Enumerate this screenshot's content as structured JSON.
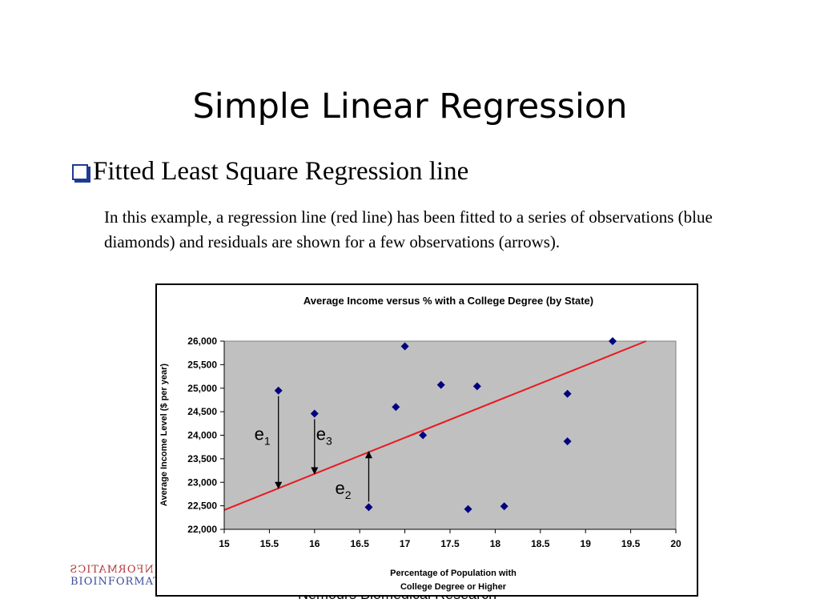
{
  "slide": {
    "title": "Simple Linear Regression",
    "bullet": "Fitted Least Square Regression line",
    "body": "In this example, a regression line (red line) has been fitted to a series of observations (blue diamonds) and residuals are shown for a few observations (arrows).",
    "footer": "Nemours Biomedical Research",
    "logo_line1": "INFORMATICS",
    "logo_line2": "BIOINFORMATICS"
  },
  "colors": {
    "plot_background": "#c0c0c0",
    "point": "#000080",
    "regression_line": "#e8181e",
    "bullet": "#1f3a93"
  },
  "chart_data": {
    "type": "scatter",
    "title": "Average Income versus % with a College Degree (by State)",
    "xlabel_lines": [
      "Percentage of Population with",
      "College Degree or Higher"
    ],
    "ylabel": "Average Income Level ($ per year)",
    "xlim": [
      15,
      20
    ],
    "ylim": [
      22000,
      26000
    ],
    "x_ticks": [
      15,
      15.5,
      16,
      16.5,
      17,
      17.5,
      18,
      18.5,
      19,
      19.5,
      20
    ],
    "x_tick_labels": [
      "15",
      "15.5",
      "16",
      "16.5",
      "17",
      "17.5",
      "18",
      "18.5",
      "19",
      "19.5",
      "20"
    ],
    "y_ticks": [
      22000,
      22500,
      23000,
      23500,
      24000,
      24500,
      25000,
      25500,
      26000
    ],
    "y_tick_labels": [
      "22,000",
      "22,500",
      "23,000",
      "23,500",
      "24,000",
      "24,500",
      "25,000",
      "25,500",
      "26,000"
    ],
    "grid": false,
    "points": [
      {
        "x": 15.6,
        "y": 24950
      },
      {
        "x": 16.0,
        "y": 24460
      },
      {
        "x": 16.6,
        "y": 22470
      },
      {
        "x": 16.9,
        "y": 24600
      },
      {
        "x": 17.0,
        "y": 25890
      },
      {
        "x": 17.2,
        "y": 24000
      },
      {
        "x": 17.4,
        "y": 25070
      },
      {
        "x": 17.7,
        "y": 22430
      },
      {
        "x": 17.8,
        "y": 25040
      },
      {
        "x": 18.1,
        "y": 22490
      },
      {
        "x": 18.8,
        "y": 24880
      },
      {
        "x": 18.8,
        "y": 23870
      },
      {
        "x": 19.3,
        "y": 26000
      }
    ],
    "regression_line": {
      "x": [
        15,
        19.67
      ],
      "y": [
        22410,
        26000
      ]
    },
    "residuals": [
      {
        "label": "e",
        "sub": "1",
        "x": 15.6,
        "y_from": 24950,
        "y_to": 22870,
        "direction": "down"
      },
      {
        "label": "e",
        "sub": "3",
        "x": 16.0,
        "y_from": 24460,
        "y_to": 23180,
        "direction": "down"
      },
      {
        "label": "e",
        "sub": "2",
        "x": 16.6,
        "y_from": 22470,
        "y_to": 23650,
        "direction": "up"
      }
    ]
  }
}
